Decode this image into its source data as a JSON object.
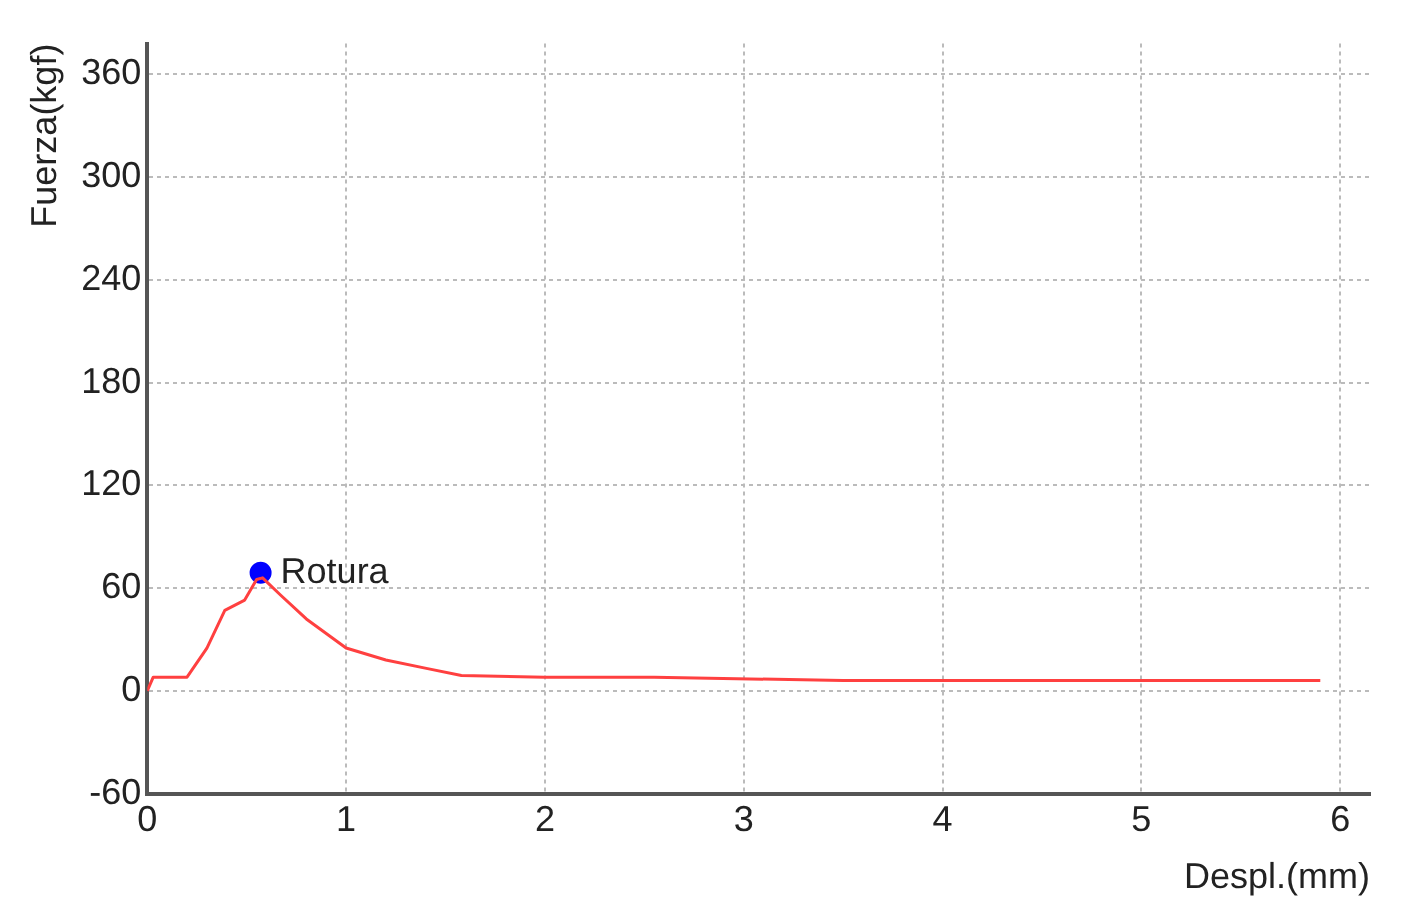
{
  "chart_data": {
    "type": "line",
    "xlabel": "Despl.(mm)",
    "ylabel": "Fuerza(kgf)",
    "xlim": [
      0,
      6.15
    ],
    "xticks": [
      0,
      1,
      2,
      3,
      4,
      5,
      6
    ],
    "ylim": [
      -60,
      378
    ],
    "yticks": [
      -60,
      0,
      60,
      120,
      180,
      240,
      300,
      360
    ],
    "grid": true,
    "legend": false,
    "series": [
      {
        "type": "line",
        "color": "#ff4040",
        "marker": "none",
        "x": [
          0,
          0.03,
          0.2,
          0.3,
          0.39,
          0.49,
          0.55,
          0.58,
          0.67,
          0.8,
          1.0,
          1.2,
          1.41,
          1.58,
          2.0,
          2.55,
          3.5,
          4.5,
          5.9
        ],
        "values": [
          0,
          8,
          8,
          25,
          47,
          53,
          65,
          66,
          56,
          42,
          25,
          18,
          13,
          9,
          8,
          8,
          6,
          6,
          6
        ]
      },
      {
        "type": "scatter",
        "color": "#0000ff",
        "marker": "circle",
        "x": [
          0.57
        ],
        "values": [
          69
        ]
      }
    ],
    "annotations": [
      {
        "text": "Rotura",
        "x": 0.57,
        "y": 69
      }
    ]
  }
}
